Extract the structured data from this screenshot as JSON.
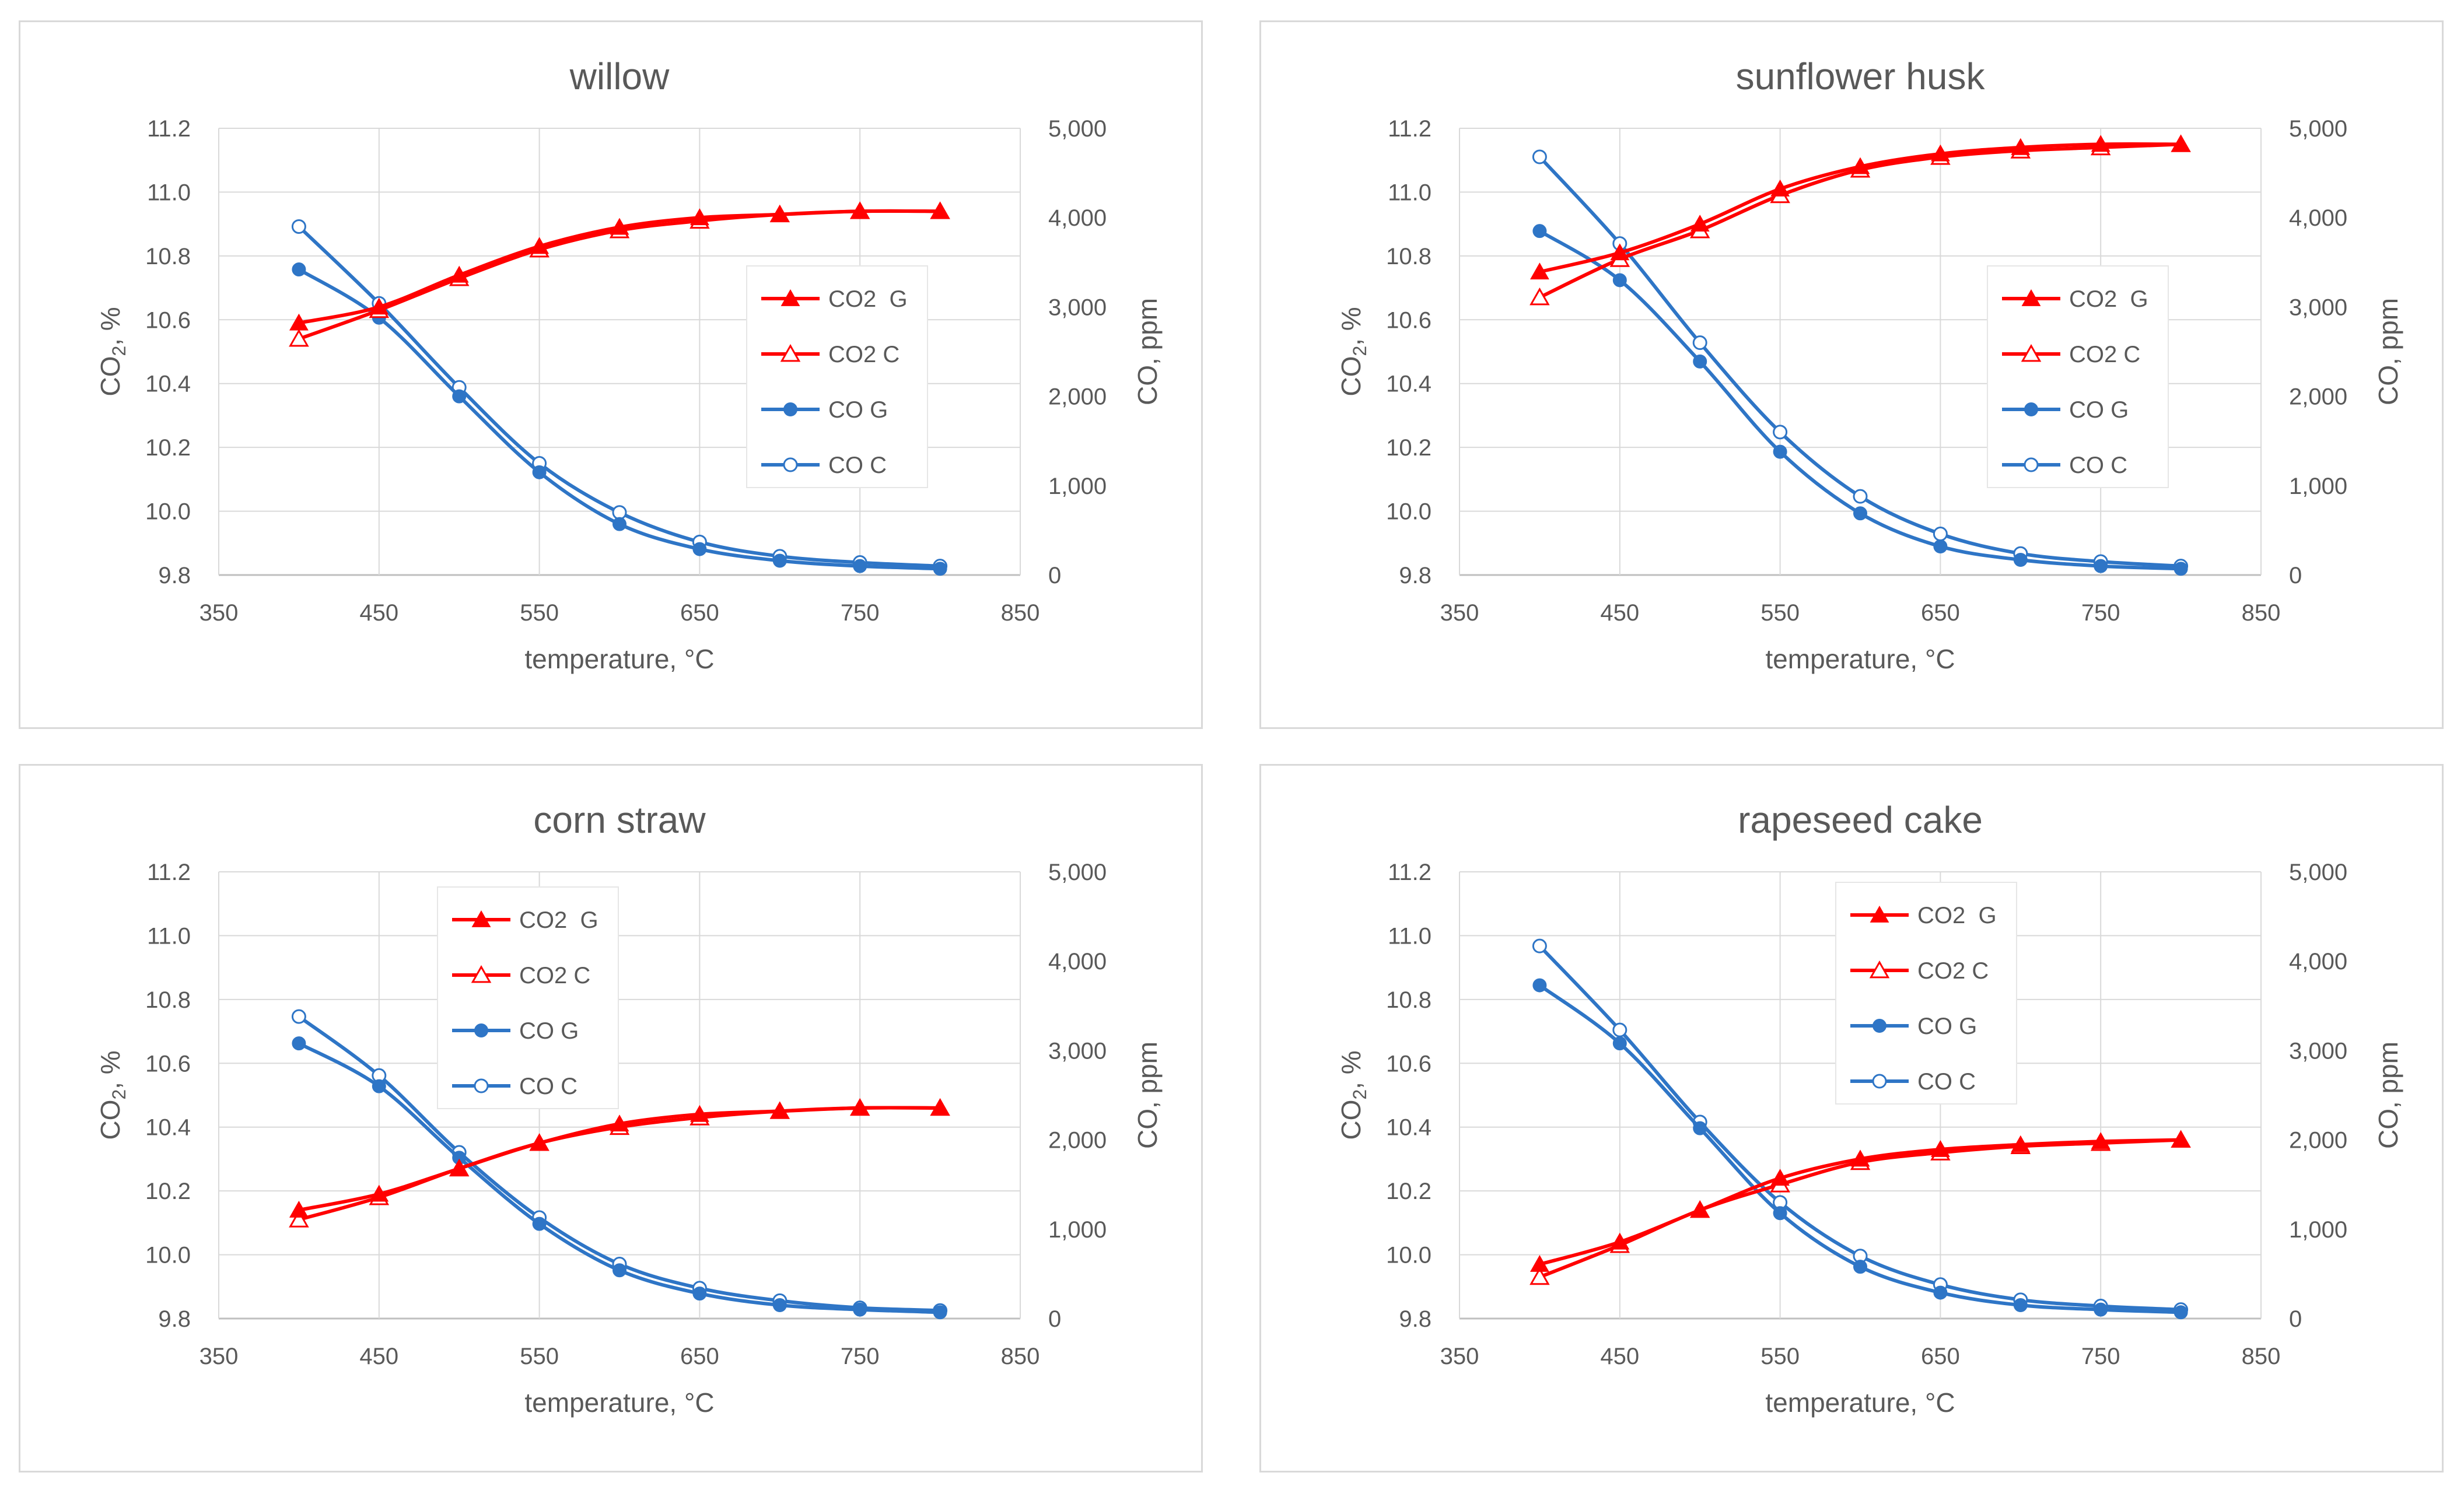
{
  "chart_data": [
    {
      "type": "line",
      "title": "willow",
      "xlabel": "temperature, °C",
      "ylabel_left": {
        "main": "CO",
        "sub": "2",
        "tail": ", %"
      },
      "ylabel_right": "CO, ppm",
      "xlim": [
        350,
        850
      ],
      "xticks": [
        "350",
        "450",
        "550",
        "650",
        "750",
        "850"
      ],
      "ylim_left": [
        9.8,
        11.2
      ],
      "yticks_left": [
        "9.8",
        "10.0",
        "10.2",
        "10.4",
        "10.6",
        "10.8",
        "11.0",
        "11.2"
      ],
      "ylim_right": [
        0,
        5000
      ],
      "yticks_right": [
        "0",
        "1,000",
        "2,000",
        "3,000",
        "4,000",
        "5,000"
      ],
      "legend_position": "right-middle",
      "x": [
        400,
        450,
        500,
        550,
        600,
        650,
        700,
        750,
        800
      ],
      "series": [
        {
          "name": "CO2  G",
          "axis": "left",
          "color": "#ff0000",
          "marker": "triangle-filled",
          "values": [
            10.59,
            10.64,
            10.74,
            10.83,
            10.89,
            10.92,
            10.93,
            10.94,
            10.94
          ]
        },
        {
          "name": "CO2 C",
          "axis": "left",
          "color": "#ff0000",
          "marker": "triangle-open",
          "values": [
            10.54,
            10.63,
            10.73,
            10.82,
            10.88,
            10.91,
            10.93,
            10.94,
            10.94
          ]
        },
        {
          "name": "CO G",
          "axis": "right",
          "color": "#2e75c6",
          "marker": "circle-filled",
          "values": [
            3420,
            2880,
            2000,
            1150,
            570,
            290,
            160,
            100,
            70
          ]
        },
        {
          "name": "CO C",
          "axis": "right",
          "color": "#2e75c6",
          "marker": "circle-open",
          "values": [
            3900,
            3040,
            2100,
            1250,
            700,
            370,
            210,
            140,
            100
          ]
        }
      ]
    },
    {
      "type": "line",
      "title": "sunflower  husk",
      "xlabel": "temperature, °C",
      "ylabel_left": {
        "main": "CO",
        "sub": "2",
        "tail": ", %"
      },
      "ylabel_right": "CO, ppm",
      "xlim": [
        350,
        850
      ],
      "xticks": [
        "350",
        "450",
        "550",
        "650",
        "750",
        "850"
      ],
      "ylim_left": [
        9.8,
        11.2
      ],
      "yticks_left": [
        "9.8",
        "10.0",
        "10.2",
        "10.4",
        "10.6",
        "10.8",
        "11.0",
        "11.2"
      ],
      "ylim_right": [
        0,
        5000
      ],
      "yticks_right": [
        "0",
        "1,000",
        "2,000",
        "3,000",
        "4,000",
        "5,000"
      ],
      "legend_position": "right-middle",
      "x": [
        400,
        450,
        500,
        550,
        600,
        650,
        700,
        750,
        800
      ],
      "series": [
        {
          "name": "CO2  G",
          "axis": "left",
          "color": "#ff0000",
          "marker": "triangle-filled",
          "values": [
            10.75,
            10.81,
            10.9,
            11.01,
            11.08,
            11.12,
            11.14,
            11.15,
            11.15
          ]
        },
        {
          "name": "CO2 C",
          "axis": "left",
          "color": "#ff0000",
          "marker": "triangle-open",
          "values": [
            10.67,
            10.79,
            10.88,
            10.99,
            11.07,
            11.11,
            11.13,
            11.14,
            11.15
          ]
        },
        {
          "name": "CO G",
          "axis": "right",
          "color": "#2e75c6",
          "marker": "circle-filled",
          "values": [
            3850,
            3300,
            2390,
            1380,
            690,
            320,
            170,
            100,
            70
          ]
        },
        {
          "name": "CO C",
          "axis": "right",
          "color": "#2e75c6",
          "marker": "circle-open",
          "values": [
            4680,
            3710,
            2600,
            1600,
            880,
            460,
            240,
            150,
            100
          ]
        }
      ]
    },
    {
      "type": "line",
      "title": "corn straw",
      "xlabel": "temperature, °C",
      "ylabel_left": {
        "main": "CO",
        "sub": "2",
        "tail": ", %"
      },
      "ylabel_right": "CO, ppm",
      "xlim": [
        350,
        850
      ],
      "xticks": [
        "350",
        "450",
        "550",
        "650",
        "750",
        "850"
      ],
      "ylim_left": [
        9.8,
        11.2
      ],
      "yticks_left": [
        "9.8",
        "10.0",
        "10.2",
        "10.4",
        "10.6",
        "10.8",
        "11.0",
        "11.2"
      ],
      "ylim_right": [
        0,
        5000
      ],
      "yticks_right": [
        "0",
        "1,000",
        "2,000",
        "3,000",
        "4,000",
        "5,000"
      ],
      "legend_position": "top-left",
      "x": [
        400,
        450,
        500,
        550,
        600,
        650,
        700,
        750,
        800
      ],
      "series": [
        {
          "name": "CO2  G",
          "axis": "left",
          "color": "#ff0000",
          "marker": "triangle-filled",
          "values": [
            10.14,
            10.19,
            10.27,
            10.35,
            10.41,
            10.44,
            10.45,
            10.46,
            10.46
          ]
        },
        {
          "name": "CO2 C",
          "axis": "left",
          "color": "#ff0000",
          "marker": "triangle-open",
          "values": [
            10.11,
            10.18,
            10.27,
            10.35,
            10.4,
            10.43,
            10.45,
            10.46,
            10.46
          ]
        },
        {
          "name": "CO G",
          "axis": "right",
          "color": "#2e75c6",
          "marker": "circle-filled",
          "values": [
            3080,
            2600,
            1800,
            1060,
            540,
            280,
            150,
            100,
            70
          ]
        },
        {
          "name": "CO C",
          "axis": "right",
          "color": "#2e75c6",
          "marker": "circle-open",
          "values": [
            3380,
            2720,
            1860,
            1130,
            610,
            340,
            200,
            120,
            90
          ]
        }
      ]
    },
    {
      "type": "line",
      "title": "rapeseed cake",
      "xlabel": "temperature, °C",
      "ylabel_left": {
        "main": "CO",
        "sub": "2",
        "tail": ", %"
      },
      "ylabel_right": "CO, ppm",
      "xlim": [
        350,
        850
      ],
      "xticks": [
        "350",
        "450",
        "550",
        "650",
        "750",
        "850"
      ],
      "ylim_left": [
        9.8,
        11.2
      ],
      "yticks_left": [
        "9.8",
        "10.0",
        "10.2",
        "10.4",
        "10.6",
        "10.8",
        "11.0",
        "11.2"
      ],
      "ylim_right": [
        0,
        5000
      ],
      "yticks_right": [
        "0",
        "1,000",
        "2,000",
        "3,000",
        "4,000",
        "5,000"
      ],
      "legend_position": "top-center",
      "x": [
        400,
        450,
        500,
        550,
        600,
        650,
        700,
        750,
        800
      ],
      "series": [
        {
          "name": "CO2  G",
          "axis": "left",
          "color": "#ff0000",
          "marker": "triangle-filled",
          "values": [
            9.97,
            10.04,
            10.14,
            10.24,
            10.3,
            10.33,
            10.345,
            10.355,
            10.36
          ]
        },
        {
          "name": "CO2 C",
          "axis": "left",
          "color": "#ff0000",
          "marker": "triangle-open",
          "values": [
            9.93,
            10.03,
            10.14,
            10.22,
            10.29,
            10.32,
            10.34,
            10.35,
            10.36
          ]
        },
        {
          "name": "CO G",
          "axis": "right",
          "color": "#2e75c6",
          "marker": "circle-filled",
          "values": [
            3730,
            3080,
            2130,
            1180,
            580,
            290,
            150,
            100,
            70
          ]
        },
        {
          "name": "CO C",
          "axis": "right",
          "color": "#2e75c6",
          "marker": "circle-open",
          "values": [
            4170,
            3230,
            2200,
            1300,
            700,
            380,
            210,
            140,
            100
          ]
        }
      ]
    }
  ]
}
